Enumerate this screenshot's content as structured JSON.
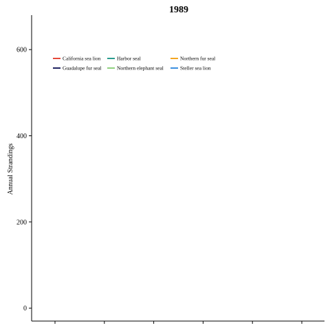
{
  "chart_data": {
    "type": "line",
    "title": "1989",
    "xlabel": "",
    "ylabel": "Annual Strandings",
    "ylim": [
      -30,
      680
    ],
    "yticks": [
      0,
      200,
      400,
      600
    ],
    "xtick_count": 6,
    "grid": false,
    "legend_placement": "top-left",
    "series": [
      {
        "name": "California sea lion",
        "color": "#e5483a",
        "values": []
      },
      {
        "name": "Harbor seal",
        "color": "#2a9d8f",
        "values": []
      },
      {
        "name": "Northern fur seal",
        "color": "#f4a621",
        "values": []
      },
      {
        "name": "Guadalupe fur seal",
        "color": "#1f2361",
        "values": []
      },
      {
        "name": "Northern elephant seal",
        "color": "#8fd17e",
        "values": []
      },
      {
        "name": "Steller sea lion",
        "color": "#3b8fe0",
        "values": []
      }
    ]
  }
}
